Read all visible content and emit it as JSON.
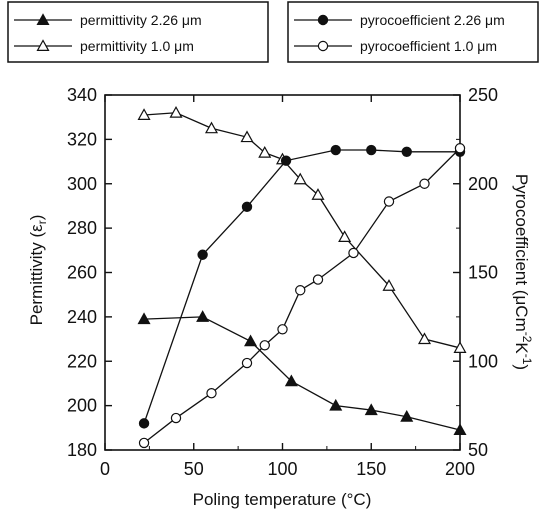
{
  "chart_data": {
    "type": "line",
    "xlabel": "Poling temperature (°C)",
    "ylabel_left": "Permittivity (ε",
    "ylabel_left_sub": "r",
    "ylabel_right": "Pyrocoefficient (μCm",
    "ylabel_right_exp1": "-2",
    "ylabel_right_mid": "K",
    "ylabel_right_exp2": "-1",
    "xlim": [
      0,
      200
    ],
    "x_ticks": [
      0,
      50,
      100,
      150,
      200
    ],
    "ylim_left": [
      180,
      340
    ],
    "y_ticks_left": [
      180,
      200,
      220,
      240,
      260,
      280,
      300,
      320,
      340
    ],
    "ylim_right": [
      50,
      250
    ],
    "y_ticks_right": [
      50,
      100,
      150,
      200,
      250
    ],
    "grid": false,
    "series": [
      {
        "name": "permittivity 2.26 μm",
        "axis": "left",
        "marker": "triangle-filled",
        "x": [
          22,
          55,
          82,
          105,
          130,
          150,
          170,
          200
        ],
        "y": [
          239,
          240,
          229,
          211,
          200,
          198,
          195,
          189
        ]
      },
      {
        "name": "permittivity 1.0 μm",
        "axis": "left",
        "marker": "triangle-open",
        "x": [
          22,
          40,
          60,
          80,
          90,
          100,
          110,
          120,
          135,
          160,
          180,
          200
        ],
        "y": [
          331,
          332,
          325,
          321,
          314,
          311,
          302,
          295,
          276,
          254,
          230,
          226
        ]
      },
      {
        "name": "pyrocoefficient 2.26 μm",
        "axis": "right",
        "marker": "circle-filled",
        "x": [
          22,
          55,
          80,
          102,
          130,
          150,
          170,
          200
        ],
        "y": [
          65,
          160,
          187,
          213,
          219,
          219,
          218,
          218
        ]
      },
      {
        "name": "pyrocoefficient 1.0 μm",
        "axis": "right",
        "marker": "circle-open",
        "x": [
          22,
          40,
          60,
          80,
          90,
          100,
          110,
          120,
          140,
          160,
          180,
          200
        ],
        "y": [
          54,
          68,
          82,
          99,
          109,
          118,
          140,
          146,
          161,
          190,
          200,
          220
        ]
      }
    ],
    "legend": {
      "left_box": [
        "permittivity 2.26 μm",
        "permittivity 1.0 μm"
      ],
      "right_box": [
        "pyrocoefficient 2.26 μm",
        "pyrocoefficient 1.0 μm"
      ],
      "placement": "top"
    }
  }
}
